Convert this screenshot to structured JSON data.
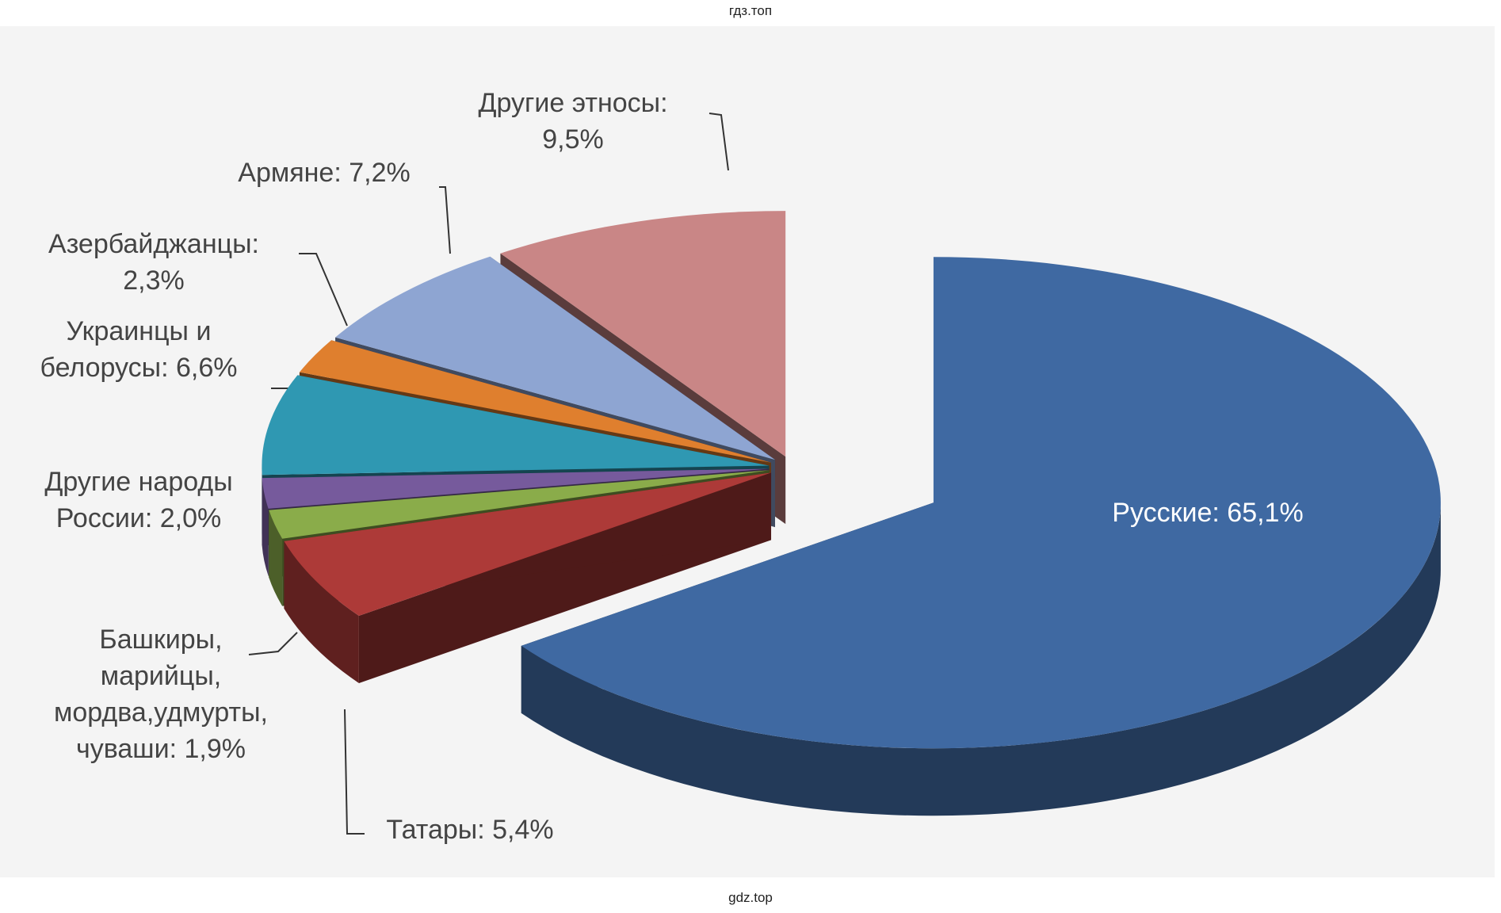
{
  "header": "гдз.топ",
  "footer": "gdz.top",
  "chart_data": {
    "type": "pie",
    "categories": [
      "Русские:",
      "Татары:",
      "Башкиры, марийцы, мордва,удмурты, чуваши:",
      "Другие народы России:",
      "Украинцы и белорусы:",
      "Азербайджанцы:",
      "Армяне:",
      "Другие этносы:"
    ],
    "values": [
      65.1,
      5.4,
      1.9,
      2.0,
      6.6,
      2.3,
      7.2,
      9.5
    ],
    "value_labels": [
      "65,1%",
      "5,4%",
      "1,9%",
      "2,0%",
      "6,6%",
      "2,3%",
      "7,2%",
      "9,5%"
    ],
    "colors": [
      "#3f69a2",
      "#ad3a38",
      "#8aac4a",
      "#765a9c",
      "#2f98b2",
      "#df7f2e",
      "#8ea5d2",
      "#c98686"
    ]
  }
}
